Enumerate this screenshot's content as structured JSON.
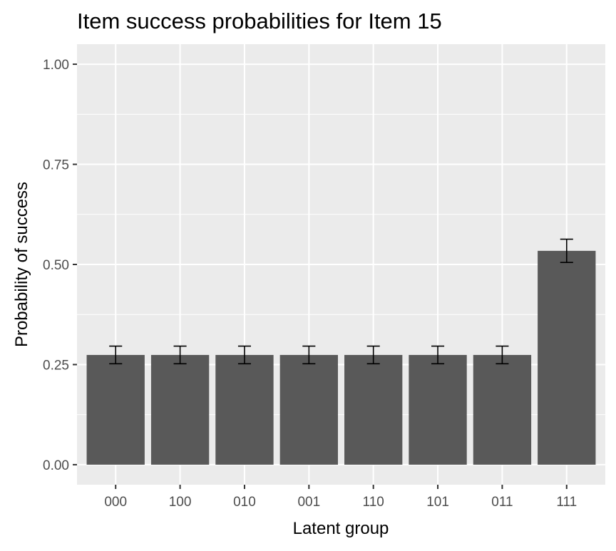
{
  "chart_data": {
    "type": "bar",
    "title": "Item success probabilities for Item 15",
    "xlabel": "Latent group",
    "ylabel": "Probability of success",
    "categories": [
      "000",
      "100",
      "010",
      "001",
      "110",
      "101",
      "011",
      "111"
    ],
    "values": [
      0.274,
      0.274,
      0.274,
      0.274,
      0.274,
      0.274,
      0.274,
      0.534
    ],
    "error_low": [
      0.252,
      0.252,
      0.252,
      0.252,
      0.252,
      0.252,
      0.252,
      0.505
    ],
    "error_high": [
      0.296,
      0.296,
      0.296,
      0.296,
      0.296,
      0.296,
      0.296,
      0.563
    ],
    "ylim": [
      -0.05,
      1.05
    ],
    "yticks": [
      0,
      0.25,
      0.5,
      0.75,
      1.0
    ],
    "ytick_labels": [
      "0.00",
      "0.25",
      "0.50",
      "0.75",
      "1.00"
    ],
    "grid": true,
    "colors": {
      "panel": "#EBEBEB",
      "grid": "#FFFFFF",
      "bar": "#595959",
      "error": "#000000",
      "tick_text": "#4D4D4D",
      "tick_mark": "#333333",
      "text": "#000000"
    }
  }
}
